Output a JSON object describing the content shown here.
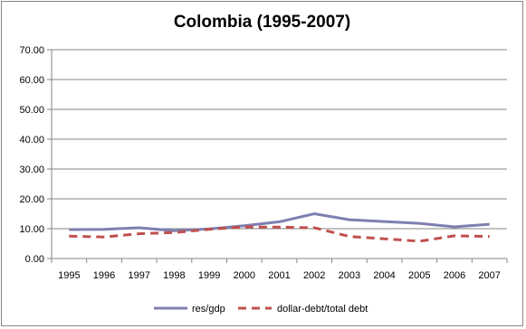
{
  "chart_data": {
    "type": "line",
    "title": "Colombia (1995-2007)",
    "categories": [
      "1995",
      "1996",
      "1997",
      "1998",
      "1999",
      "2000",
      "2001",
      "2002",
      "2003",
      "2004",
      "2005",
      "2006",
      "2007"
    ],
    "series": [
      {
        "name": "res/gdp",
        "style": "solid",
        "color": "#7f7fb0",
        "values": [
          9.7,
          9.8,
          10.3,
          9.3,
          9.9,
          11.0,
          12.3,
          15.0,
          13.0,
          12.4,
          11.8,
          10.6,
          11.5
        ]
      },
      {
        "name": "dollar-debt/total debt",
        "style": "dashed",
        "color": "#c0504d",
        "values": [
          7.5,
          7.2,
          8.3,
          8.7,
          9.8,
          10.6,
          10.5,
          10.3,
          7.4,
          6.6,
          5.8,
          7.6,
          7.4
        ]
      }
    ],
    "y_ticks": [
      "0.00",
      "10.00",
      "20.00",
      "30.00",
      "40.00",
      "50.00",
      "60.00",
      "70.00"
    ],
    "ylim": [
      0,
      70
    ],
    "grid": true,
    "legend": "bottom"
  }
}
